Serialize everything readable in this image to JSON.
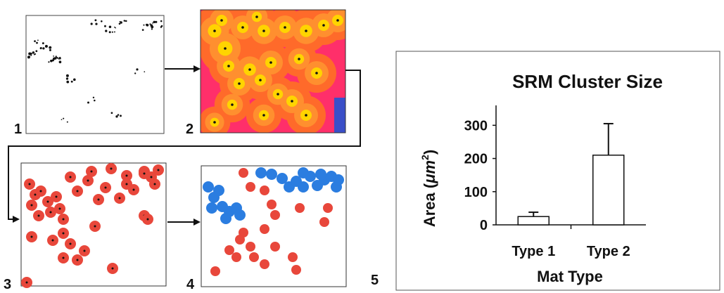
{
  "panels": [
    {
      "label": "1"
    },
    {
      "label": "2"
    },
    {
      "label": "3"
    },
    {
      "label": "4"
    },
    {
      "label": "5"
    }
  ],
  "colors": {
    "heat_bg": "#ff2f6a",
    "heat_orange": "#ff6a2a",
    "heat_yellow": "#ffd400",
    "heat_blue": "#3a4fc8",
    "cluster_red": "#e8473b",
    "cluster_blue": "#2b7de0",
    "ink": "#111111"
  },
  "chart_data": {
    "type": "bar",
    "title": "SRM Cluster Size",
    "xlabel": "Mat Type",
    "ylabel_prefix": "Area (",
    "ylabel_unit": "μm",
    "ylabel_exp": "2",
    "ylabel_suffix": ")",
    "categories": [
      "Type 1",
      "Type 2"
    ],
    "values": [
      25,
      210
    ],
    "error_upper": [
      38,
      305
    ],
    "ylim": [
      0,
      360
    ],
    "yticks": [
      0,
      100,
      200,
      300
    ],
    "bar_fill": "#ffffff",
    "bar_stroke": "#111111",
    "grid": false,
    "legend": false
  }
}
